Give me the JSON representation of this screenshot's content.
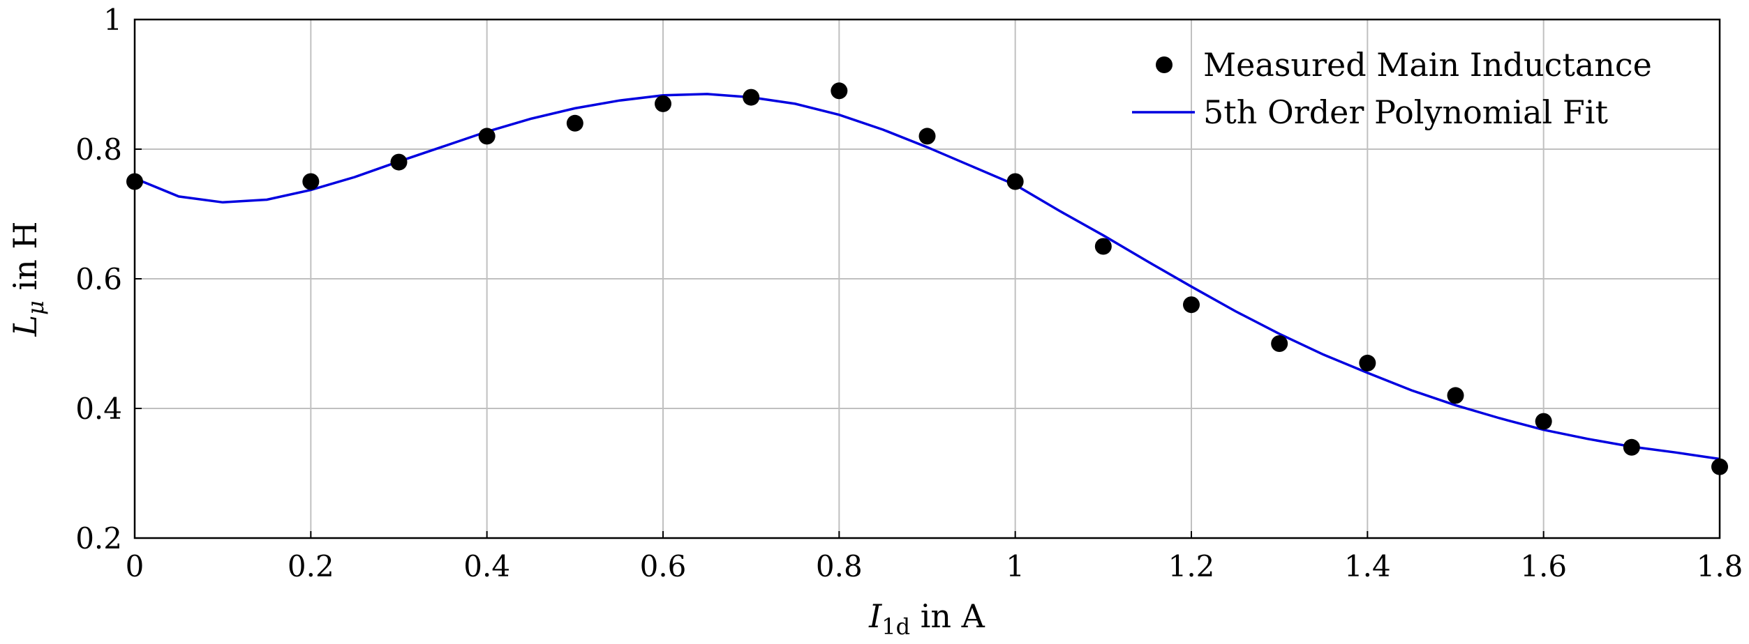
{
  "chart_data": {
    "type": "scatter",
    "xlim": [
      0,
      1.8
    ],
    "ylim": [
      0.2,
      1
    ],
    "x_ticks": [
      "0",
      "0.2",
      "0.4",
      "0.6",
      "0.8",
      "1",
      "1.2",
      "1.4",
      "1.6",
      "1.8"
    ],
    "y_ticks": [
      "0.2",
      "0.4",
      "0.6",
      "0.8",
      "1"
    ],
    "grid": true,
    "legend_position": "top-right",
    "xlabel": {
      "var": "I",
      "sub": "1d",
      "unit": " in A"
    },
    "ylabel": {
      "var": "L",
      "sub": "μ",
      "unit": " in H"
    },
    "series": [
      {
        "name": "Measured Main Inductance",
        "kind": "markers",
        "color": "#000000",
        "x": [
          0,
          0.2,
          0.3,
          0.4,
          0.5,
          0.6,
          0.7,
          0.8,
          0.9,
          1.0,
          1.1,
          1.2,
          1.3,
          1.4,
          1.5,
          1.6,
          1.7,
          1.8
        ],
        "y": [
          0.75,
          0.75,
          0.78,
          0.82,
          0.84,
          0.87,
          0.88,
          0.89,
          0.82,
          0.75,
          0.65,
          0.56,
          0.5,
          0.47,
          0.42,
          0.38,
          0.34,
          0.31
        ]
      },
      {
        "name": "5th Order Polynomial Fit",
        "kind": "line",
        "color": "#0000e0",
        "x": [
          0,
          0.05,
          0.1,
          0.15,
          0.2,
          0.25,
          0.3,
          0.35,
          0.4,
          0.45,
          0.5,
          0.55,
          0.6,
          0.65,
          0.7,
          0.75,
          0.8,
          0.85,
          0.9,
          0.95,
          1.0,
          1.05,
          1.1,
          1.15,
          1.2,
          1.25,
          1.3,
          1.35,
          1.4,
          1.45,
          1.5,
          1.55,
          1.6,
          1.65,
          1.7,
          1.75,
          1.8
        ],
        "y": [
          0.755,
          0.727,
          0.718,
          0.722,
          0.737,
          0.757,
          0.781,
          0.804,
          0.827,
          0.847,
          0.863,
          0.875,
          0.883,
          0.885,
          0.88,
          0.87,
          0.853,
          0.83,
          0.803,
          0.774,
          0.745,
          0.705,
          0.667,
          0.627,
          0.588,
          0.55,
          0.515,
          0.483,
          0.455,
          0.428,
          0.405,
          0.385,
          0.367,
          0.353,
          0.341,
          0.332,
          0.322
        ]
      }
    ]
  }
}
